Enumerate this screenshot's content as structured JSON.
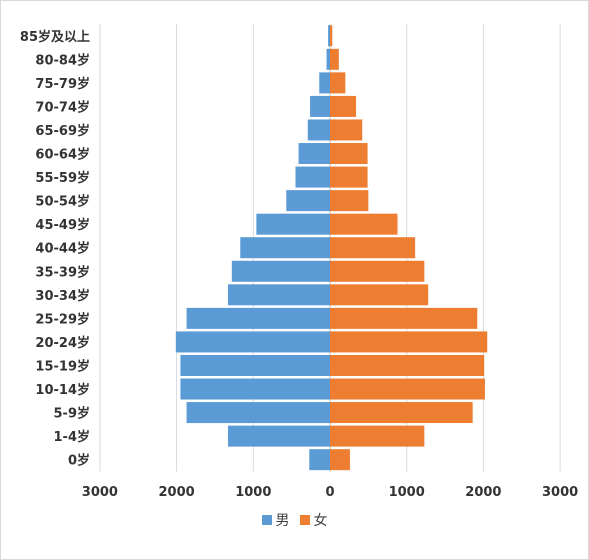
{
  "chart_data": {
    "type": "bar",
    "orientation": "horizontal",
    "layout": "population-pyramid",
    "categories": [
      "85岁及以上",
      "80-84岁",
      "75-79岁",
      "70-74岁",
      "65-69岁",
      "60-64岁",
      "55-59岁",
      "50-54岁",
      "45-49岁",
      "40-44岁",
      "35-39岁",
      "30-34岁",
      "25-29岁",
      "20-24岁",
      "15-19岁",
      "10-14岁",
      "5-9岁",
      "1-4岁",
      "0岁"
    ],
    "series": [
      {
        "name": "男",
        "color": "#5b9bd5",
        "values": [
          25,
          45,
          140,
          260,
          290,
          410,
          450,
          570,
          960,
          1170,
          1280,
          1330,
          1870,
          2010,
          1950,
          1950,
          1870,
          1330,
          270
        ]
      },
      {
        "name": "女",
        "color": "#ed7d31",
        "values": [
          30,
          115,
          200,
          340,
          420,
          490,
          490,
          500,
          880,
          1110,
          1230,
          1280,
          1920,
          2050,
          2010,
          2020,
          1860,
          1230,
          260
        ]
      }
    ],
    "x_ticks": [
      "3000",
      "2000",
      "1000",
      "0",
      "1000",
      "2000",
      "3000"
    ],
    "xlim": [
      -3000,
      3000
    ],
    "grid": "vertical",
    "legend_position": "bottom"
  }
}
